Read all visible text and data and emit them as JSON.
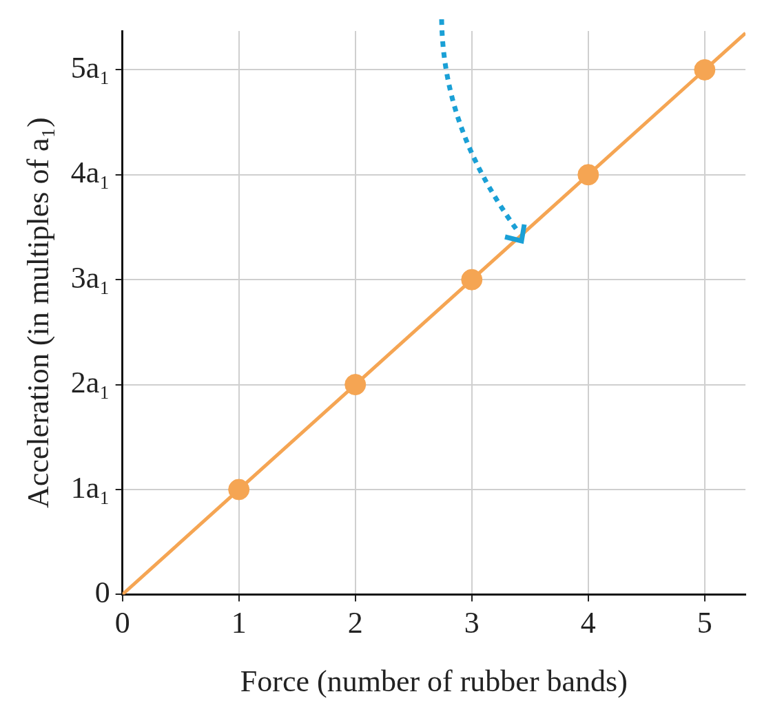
{
  "chart_data": {
    "type": "line",
    "xlabel": "Force (number of rubber bands)",
    "ylabel": "Acceleration (in multiples of a₁)",
    "xlim": [
      0,
      5.35
    ],
    "ylim": [
      0,
      5.37
    ],
    "xticks": [
      0,
      1,
      2,
      3,
      4,
      5
    ],
    "yticks": [
      0,
      {
        "value": 1,
        "label": "1a₁"
      },
      {
        "value": 2,
        "label": "2a₁"
      },
      {
        "value": 3,
        "label": "3a₁"
      },
      {
        "value": 4,
        "label": "4a₁"
      },
      {
        "value": 5,
        "label": "5a₁"
      }
    ],
    "grid": true,
    "legend": false,
    "series": [
      {
        "type": "line",
        "color": "#f5a553",
        "x": [
          0,
          5.35
        ],
        "values": [
          0,
          5.35
        ],
        "marker": "none",
        "line_style": "solid"
      },
      {
        "type": "scatter",
        "color": "#f5a553",
        "x": [
          1,
          2,
          3,
          4,
          5
        ],
        "values": [
          1,
          2,
          3,
          4,
          5
        ],
        "marker": "circle"
      }
    ]
  }
}
